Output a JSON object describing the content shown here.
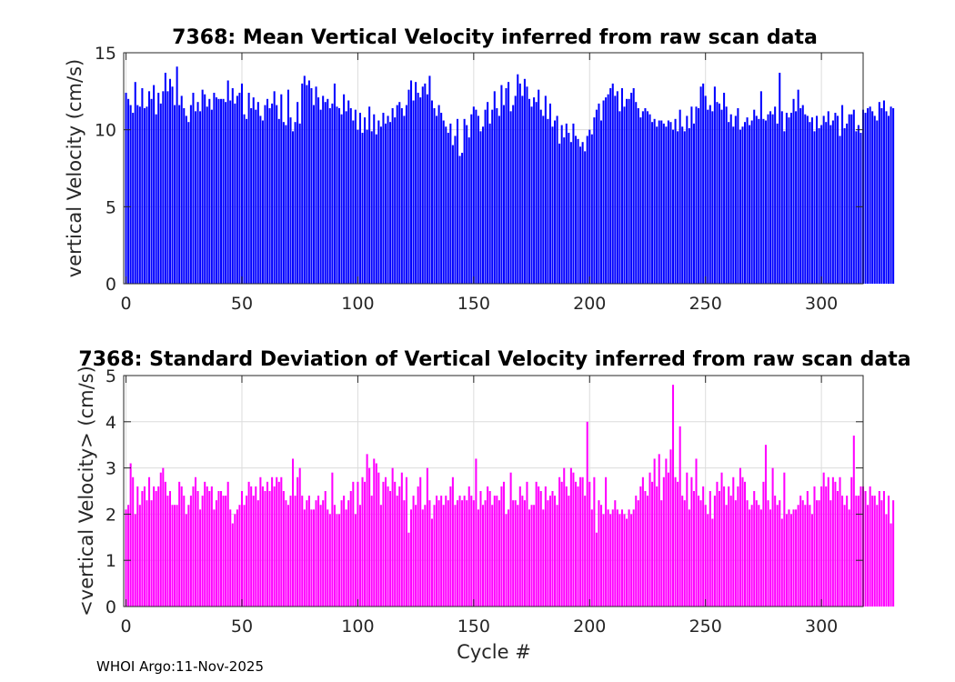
{
  "footer": "WHOI Argo:11-Nov-2025",
  "chart_data": [
    {
      "type": "bar",
      "title": "7368: Mean Vertical Velocity inferred from raw scan data",
      "xlabel": "",
      "ylabel": "vertical Velocity (cm/s)",
      "xlim": [
        -1,
        318
      ],
      "ylim": [
        0,
        15
      ],
      "xticks": [
        0,
        50,
        100,
        150,
        200,
        250,
        300
      ],
      "yticks": [
        0,
        5,
        10,
        15
      ],
      "grid": true,
      "color": "#0000ff",
      "x_start": 0,
      "values": [
        12.4,
        12.0,
        11.6,
        11.1,
        13.1,
        11.6,
        11.5,
        12.7,
        11.4,
        11.5,
        12.5,
        12.0,
        12.9,
        11.0,
        12.4,
        11.7,
        12.5,
        13.7,
        12.5,
        13.3,
        12.8,
        11.6,
        14.1,
        11.6,
        12.2,
        11.4,
        10.9,
        10.5,
        11.6,
        12.4,
        11.2,
        11.8,
        11.2,
        12.6,
        12.3,
        11.5,
        12.0,
        11.3,
        12.4,
        12.1,
        12.0,
        12.0,
        12.0,
        11.8,
        13.2,
        11.9,
        12.7,
        11.7,
        12.2,
        12.4,
        13.0,
        11.0,
        10.7,
        12.4,
        11.4,
        12.1,
        11.3,
        11.8,
        10.9,
        10.6,
        11.6,
        12.0,
        11.4,
        11.7,
        12.5,
        11.6,
        10.7,
        12.3,
        10.5,
        10.3,
        12.6,
        10.8,
        9.9,
        10.5,
        11.8,
        10.4,
        13.0,
        13.5,
        12.9,
        13.2,
        12.7,
        11.6,
        12.8,
        12.1,
        11.3,
        12.2,
        11.8,
        12.0,
        11.4,
        11.7,
        13.0,
        11.5,
        11.4,
        11.0,
        12.3,
        11.2,
        11.9,
        11.4,
        10.6,
        11.3,
        10.0,
        11.1,
        9.8,
        10.8,
        10.0,
        11.5,
        9.9,
        11.0,
        9.7,
        10.6,
        10.2,
        11.1,
        10.4,
        10.9,
        10.5,
        11.4,
        10.8,
        11.6,
        11.8,
        11.4,
        10.9,
        11.6,
        12.6,
        13.2,
        11.9,
        13.1,
        12.4,
        12.1,
        12.8,
        13.0,
        12.3,
        13.5,
        11.9,
        11.4,
        10.9,
        11.6,
        11.1,
        10.6,
        10.2,
        9.8,
        10.4,
        9.0,
        9.6,
        10.7,
        8.3,
        8.5,
        10.7,
        10.3,
        9.5,
        11.0,
        11.5,
        11.3,
        10.9,
        9.9,
        10.2,
        11.3,
        11.8,
        10.4,
        11.3,
        12.5,
        11.4,
        10.9,
        12.9,
        11.6,
        12.7,
        13.1,
        11.2,
        11.6,
        12.2,
        13.6,
        13.0,
        12.2,
        13.3,
        12.8,
        12.0,
        11.5,
        12.1,
        11.8,
        12.6,
        11.3,
        10.9,
        12.2,
        10.7,
        11.7,
        10.2,
        10.6,
        10.9,
        9.1,
        10.3,
        9.5,
        10.4,
        9.8,
        9.2,
        10.4,
        9.6,
        9.4,
        8.9,
        9.2,
        8.6,
        9.6,
        10.0,
        9.7,
        10.8,
        11.3,
        11.7,
        10.6,
        11.9,
        12.1,
        12.3,
        12.7,
        13.0,
        12.2,
        12.5,
        11.2,
        12.7,
        11.5,
        12.0,
        12.0,
        12.4,
        12.7,
        11.8,
        11.4,
        10.8,
        11.2,
        11.4,
        11.2,
        11.0,
        10.5,
        10.7,
        10.2,
        10.6,
        10.6,
        10.4,
        10.2,
        10.6,
        10.5,
        10.0,
        10.7,
        9.9,
        11.3,
        10.2,
        9.9,
        10.9,
        10.1,
        11.5,
        10.4,
        11.5,
        11.4,
        12.8,
        13.0,
        12.2,
        11.3,
        11.6,
        11.2,
        12.8,
        11.8,
        11.7,
        11.3,
        12.4,
        11.5,
        10.5,
        11.0,
        10.2,
        10.9,
        11.4,
        10.0,
        10.2,
        10.5,
        10.8,
        10.3,
        10.6,
        11.3,
        10.9,
        10.7,
        12.5,
        10.7,
        10.6,
        11.0,
        11.2,
        11.0,
        11.5,
        10.4,
        13.7,
        11.2,
        9.9,
        11.1,
        10.8,
        11.1,
        12.0,
        11.2,
        12.6,
        11.4,
        11.6,
        11.0,
        10.9,
        10.5,
        10.8,
        9.9,
        10.9,
        10.1,
        10.3,
        10.9,
        10.5,
        11.2,
        10.3,
        10.6,
        11.1,
        10.9,
        9.6,
        11.6,
        10.1,
        10.4,
        11.0,
        11.0,
        11.3,
        9.9,
        10.3,
        9.8,
        11.3,
        11.1,
        11.4,
        11.5,
        11.2,
        10.9,
        10.6,
        11.8,
        11.4,
        11.9,
        11.2,
        10.9,
        11.5,
        11.4
      ],
      "value_labels": []
    },
    {
      "type": "bar",
      "title": "7368: Standard Deviation of Vertical Velocity inferred from raw scan data",
      "xlabel": "Cycle #",
      "ylabel": "<vertical Velocity> (cm/s)",
      "xlim": [
        -1,
        318
      ],
      "ylim": [
        0,
        5
      ],
      "xticks": [
        0,
        50,
        100,
        150,
        200,
        250,
        300
      ],
      "yticks": [
        0,
        1,
        2,
        3,
        4,
        5
      ],
      "grid": true,
      "color": "#ff00ff",
      "x_start": 0,
      "values": [
        2.1,
        2.2,
        3.1,
        2.8,
        2.0,
        2.6,
        2.2,
        2.5,
        2.6,
        2.3,
        2.8,
        2.3,
        2.6,
        2.5,
        2.6,
        2.9,
        3.0,
        2.7,
        2.4,
        2.5,
        2.2,
        2.2,
        2.2,
        2.7,
        2.6,
        2.4,
        2.0,
        2.2,
        2.4,
        2.6,
        2.8,
        2.5,
        2.1,
        2.4,
        2.7,
        2.6,
        2.5,
        2.6,
        2.1,
        2.3,
        2.5,
        2.5,
        2.4,
        2.4,
        2.7,
        2.1,
        1.8,
        2.0,
        2.1,
        2.2,
        2.5,
        2.2,
        2.4,
        2.7,
        2.6,
        2.4,
        2.6,
        2.3,
        2.8,
        2.6,
        2.5,
        2.7,
        2.5,
        2.8,
        2.6,
        2.8,
        2.7,
        2.8,
        2.5,
        2.3,
        2.2,
        2.4,
        3.2,
        2.4,
        2.8,
        3.0,
        2.4,
        2.1,
        2.3,
        2.4,
        2.1,
        2.1,
        2.3,
        2.4,
        2.2,
        2.3,
        2.5,
        2.1,
        2.0,
        2.9,
        2.2,
        2.0,
        2.0,
        2.3,
        2.4,
        2.1,
        2.3,
        2.5,
        2.7,
        2.0,
        2.7,
        2.2,
        2.8,
        2.7,
        3.3,
        3.0,
        2.4,
        3.2,
        3.1,
        2.9,
        2.2,
        2.7,
        2.8,
        2.6,
        2.5,
        3.0,
        2.7,
        2.4,
        2.6,
        2.9,
        2.3,
        2.8,
        1.6,
        2.1,
        2.4,
        2.2,
        2.6,
        2.8,
        2.1,
        2.2,
        3.0,
        2.3,
        1.9,
        2.2,
        2.4,
        2.3,
        2.4,
        2.2,
        2.4,
        2.3,
        2.6,
        2.8,
        2.2,
        2.3,
        2.4,
        2.3,
        2.4,
        2.3,
        2.6,
        2.4,
        2.3,
        3.2,
        2.1,
        2.5,
        2.2,
        2.3,
        2.6,
        2.5,
        2.2,
        2.4,
        2.4,
        2.3,
        2.6,
        2.7,
        2.0,
        2.1,
        2.9,
        2.3,
        2.3,
        2.2,
        2.6,
        2.4,
        2.3,
        2.7,
        2.1,
        2.2,
        2.2,
        2.7,
        2.6,
        2.5,
        2.1,
        2.6,
        2.3,
        2.4,
        2.5,
        2.4,
        2.2,
        2.8,
        2.7,
        3.0,
        2.6,
        2.4,
        3.0,
        2.9,
        2.7,
        2.6,
        2.8,
        2.8,
        2.4,
        4.0,
        2.7,
        2.1,
        2.8,
        1.6,
        2.3,
        2.2,
        2.0,
        2.8,
        2.1,
        2.0,
        2.1,
        2.3,
        2.1,
        2.0,
        2.1,
        2.0,
        1.9,
        2.1,
        2.0,
        2.1,
        2.4,
        2.3,
        2.6,
        2.8,
        2.5,
        2.4,
        2.9,
        2.7,
        3.2,
        2.6,
        3.3,
        2.3,
        2.8,
        3.2,
        2.9,
        3.4,
        4.8,
        2.8,
        2.7,
        3.9,
        2.4,
        2.3,
        2.9,
        2.1,
        2.8,
        2.5,
        3.2,
        2.4,
        2.3,
        2.6,
        2.2,
        2.0,
        2.5,
        1.9,
        2.4,
        2.7,
        2.5,
        2.9,
        2.6,
        2.2,
        2.6,
        2.4,
        2.8,
        2.3,
        2.6,
        3.0,
        2.8,
        2.7,
        2.3,
        2.1,
        2.2,
        2.5,
        2.3,
        2.2,
        2.1,
        2.7,
        3.5,
        2.3,
        2.1,
        3.0,
        2.4,
        2.2,
        2.3,
        1.9,
        2.9,
        2.0,
        2.1,
        2.0,
        2.1,
        2.1,
        2.2,
        2.4,
        2.3,
        2.2,
        2.5,
        2.2,
        2.0,
        2.6,
        2.3,
        2.3,
        2.6,
        2.9,
        2.6,
        2.8,
        2.3,
        2.8,
        2.7,
        2.5,
        2.8,
        2.4,
        2.2,
        2.4,
        2.1,
        2.8,
        3.7,
        2.4,
        2.4,
        2.6,
        2.6,
        2.5,
        2.2,
        2.6,
        2.4,
        2.4,
        2.2,
        2.5,
        2.3,
        2.5,
        2.0,
        2.4,
        1.8,
        2.3
      ],
      "value_labels": []
    }
  ]
}
